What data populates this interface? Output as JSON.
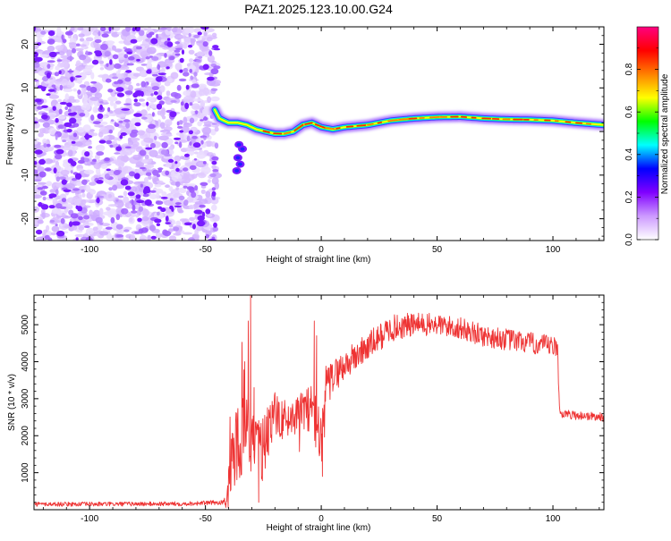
{
  "title": "PAZ1.2025.123.10.00.G24",
  "chart_data": [
    {
      "type": "heatmap",
      "xlabel": "Height of straight line (km)",
      "ylabel": "Frequency (Hz)",
      "xlim": [
        -124,
        122
      ],
      "ylim": [
        -25,
        24
      ],
      "xticks": [
        -100,
        -50,
        0,
        50,
        100
      ],
      "yticks": [
        -20,
        -10,
        0,
        10,
        20
      ],
      "noise_region_x": [
        -124,
        -45
      ],
      "colorbar": {
        "label": "Normalized spectral amplitude",
        "range": [
          0,
          1
        ],
        "ticks": [
          0.0,
          0.2,
          0.4,
          0.6,
          0.8
        ],
        "colors": [
          "#ffffff",
          "#cc99ff",
          "#8000ff",
          "#0000ff",
          "#00ffff",
          "#00ff00",
          "#ffff00",
          "#ff8000",
          "#ff0000",
          "#ff0080"
        ]
      },
      "ridge": {
        "x": [
          -46,
          -44,
          -40,
          -36,
          -32,
          -28,
          -24,
          -20,
          -16,
          -12,
          -8,
          -4,
          0,
          5,
          10,
          20,
          30,
          40,
          50,
          60,
          70,
          80,
          90,
          100,
          110,
          122
        ],
        "freq": [
          5,
          3,
          2,
          2,
          1.5,
          0.5,
          0,
          -0.5,
          -0.5,
          0,
          1.5,
          2,
          1,
          0.5,
          1,
          1.5,
          2.5,
          3,
          3.3,
          3.4,
          3,
          2.8,
          2.7,
          2.5,
          2,
          1.5
        ]
      }
    },
    {
      "type": "line",
      "xlabel": "Height of straight line (km)",
      "ylabel": "SNR (10 * v/v)",
      "xlim": [
        -124,
        122
      ],
      "ylim": [
        0,
        5800
      ],
      "xticks": [
        -100,
        -50,
        0,
        50,
        100
      ],
      "yticks": [
        1000,
        2000,
        3000,
        4000,
        5000
      ],
      "color": "#ee3333",
      "profile": {
        "x": [
          -124,
          -100,
          -60,
          -42,
          -40,
          -38,
          -35,
          -32,
          -30,
          -28,
          -25,
          -20,
          -15,
          -10,
          -5,
          -1,
          0,
          2,
          5,
          10,
          20,
          30,
          40,
          50,
          60,
          70,
          80,
          90,
          100,
          102,
          103,
          110,
          122
        ],
        "y": [
          150,
          150,
          160,
          200,
          500,
          1500,
          2000,
          2500,
          1800,
          1500,
          1700,
          2600,
          2400,
          2600,
          2800,
          2200,
          1500,
          3200,
          3600,
          3900,
          4400,
          4900,
          5000,
          5000,
          4900,
          4700,
          4600,
          4500,
          4400,
          4300,
          2600,
          2550,
          2500
        ]
      },
      "noise": {
        "x": [
          -124,
          -42,
          -40,
          -35,
          -30,
          -25,
          -20,
          -10,
          -5,
          0,
          5,
          20,
          50,
          102,
          103,
          122
        ],
        "amp": [
          60,
          60,
          800,
          1200,
          900,
          900,
          600,
          500,
          700,
          900,
          450,
          400,
          300,
          300,
          120,
          120
        ]
      },
      "spikes": [
        {
          "x": -30.5,
          "y": 5800
        },
        {
          "x": -31.5,
          "y": 5100
        },
        {
          "x": -33,
          "y": 4000
        },
        {
          "x": -29,
          "y": 3300
        },
        {
          "x": -3,
          "y": 5100
        },
        {
          "x": -2,
          "y": 4700
        },
        {
          "x": 0.5,
          "y": 900
        },
        {
          "x": -27,
          "y": 200
        }
      ]
    }
  ]
}
